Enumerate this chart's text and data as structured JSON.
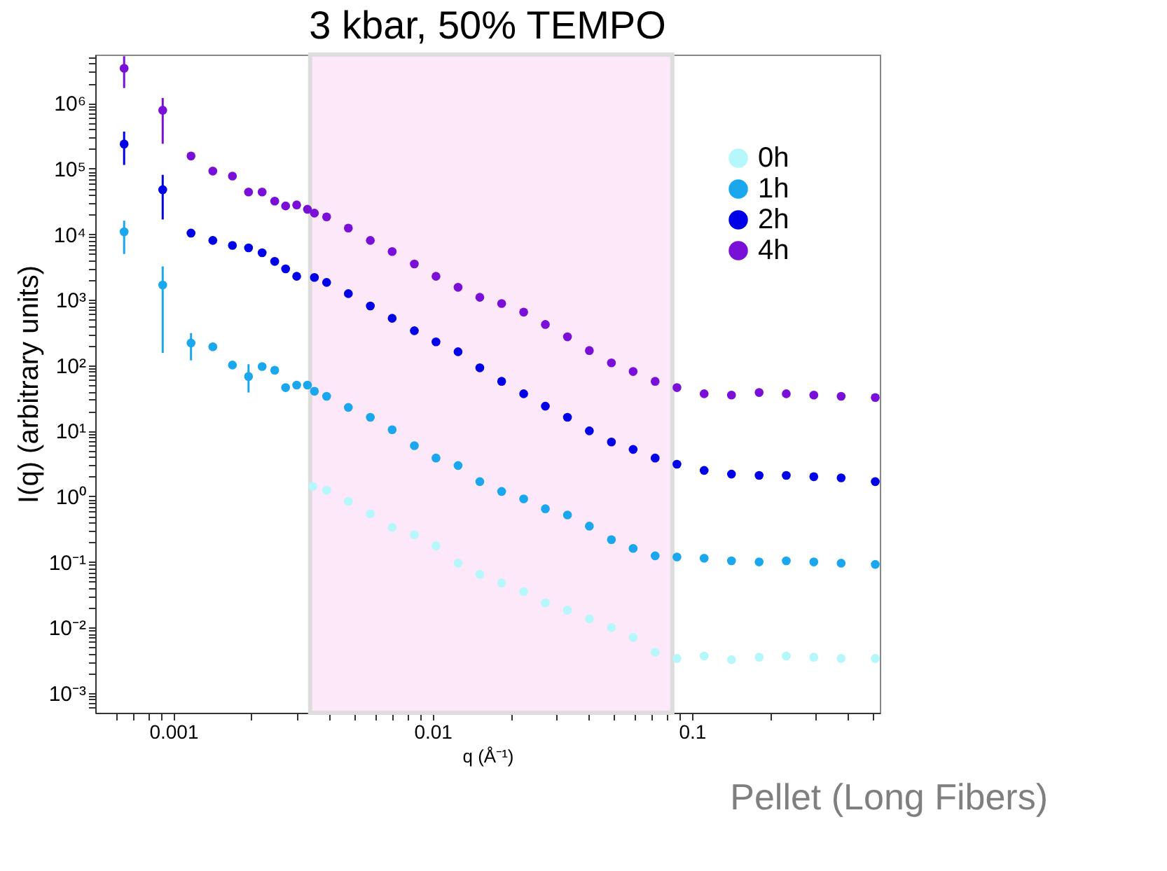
{
  "chart_data": {
    "type": "scatter",
    "title": "3 kbar, 50% TEMPO",
    "xlabel": "q (Å⁻¹)",
    "ylabel": "I(q) (arbitrary units)",
    "log": "xy",
    "grid": false,
    "legend": "top right",
    "marker": "circle",
    "xlim": [
      0.0005,
      0.53
    ],
    "ylim": [
      0.0005,
      5500000
    ],
    "xticks": [
      {
        "value": 0.0006,
        "label": null
      },
      {
        "value": 0.0007,
        "label": null
      },
      {
        "value": 0.0008,
        "label": null
      },
      {
        "value": 0.0009,
        "label": null
      },
      0.001,
      {
        "value": 0.002,
        "label": null
      },
      {
        "value": 0.003,
        "label": null
      },
      {
        "value": 0.004,
        "label": null
      },
      {
        "value": 0.005,
        "label": null
      },
      {
        "value": 0.006,
        "label": null
      },
      {
        "value": 0.007,
        "label": null
      },
      {
        "value": 0.008,
        "label": null
      },
      {
        "value": 0.009,
        "label": null
      },
      0.01,
      {
        "value": 0.02,
        "label": null
      },
      {
        "value": 0.03,
        "label": null
      },
      {
        "value": 0.04,
        "label": null
      },
      {
        "value": 0.05,
        "label": null
      },
      {
        "value": 0.06,
        "label": null
      },
      {
        "value": 0.07,
        "label": null
      },
      {
        "value": 0.08,
        "label": null
      },
      {
        "value": 0.09,
        "label": null
      },
      0.1,
      {
        "value": 0.2,
        "label": null
      },
      {
        "value": 0.3,
        "label": null
      },
      {
        "value": 0.4,
        "label": null
      },
      {
        "value": 0.5,
        "label": null
      }
    ],
    "yticks": [
      {
        "value": 0.0006,
        "label": null
      },
      {
        "value": 0.0007,
        "label": null
      },
      {
        "value": 0.0008,
        "label": null
      },
      {
        "value": 0.0009,
        "label": null
      },
      {
        "value": 0.001,
        "label": "10⁻³"
      },
      {
        "value": 0.002,
        "label": null
      },
      {
        "value": 0.003,
        "label": null
      },
      {
        "value": 0.004,
        "label": null
      },
      {
        "value": 0.005,
        "label": null
      },
      {
        "value": 0.006,
        "label": null
      },
      {
        "value": 0.007,
        "label": null
      },
      {
        "value": 0.008,
        "label": null
      },
      {
        "value": 0.009,
        "label": null
      },
      {
        "value": 0.01,
        "label": "10⁻²"
      },
      {
        "value": 0.02,
        "label": null
      },
      {
        "value": 0.03,
        "label": null
      },
      {
        "value": 0.04,
        "label": null
      },
      {
        "value": 0.05,
        "label": null
      },
      {
        "value": 0.06,
        "label": null
      },
      {
        "value": 0.07,
        "label": null
      },
      {
        "value": 0.08,
        "label": null
      },
      {
        "value": 0.09,
        "label": null
      },
      {
        "value": 0.1,
        "label": "10⁻¹"
      },
      {
        "value": 0.2,
        "label": null
      },
      {
        "value": 0.3,
        "label": null
      },
      {
        "value": 0.4,
        "label": null
      },
      {
        "value": 0.5,
        "label": null
      },
      {
        "value": 0.6,
        "label": null
      },
      {
        "value": 0.7,
        "label": null
      },
      {
        "value": 0.8,
        "label": null
      },
      {
        "value": 0.9,
        "label": null
      },
      {
        "value": 1,
        "label": "10⁰"
      },
      {
        "value": 2,
        "label": null
      },
      {
        "value": 3,
        "label": null
      },
      {
        "value": 4,
        "label": null
      },
      {
        "value": 5,
        "label": null
      },
      {
        "value": 6,
        "label": null
      },
      {
        "value": 7,
        "label": null
      },
      {
        "value": 8,
        "label": null
      },
      {
        "value": 9,
        "label": null
      },
      {
        "value": 10,
        "label": "10¹"
      },
      {
        "value": 20,
        "label": null
      },
      {
        "value": 30,
        "label": null
      },
      {
        "value": 40,
        "label": null
      },
      {
        "value": 50,
        "label": null
      },
      {
        "value": 60,
        "label": null
      },
      {
        "value": 70,
        "label": null
      },
      {
        "value": 80,
        "label": null
      },
      {
        "value": 90,
        "label": null
      },
      {
        "value": 100,
        "label": "10²"
      },
      {
        "value": 200,
        "label": null
      },
      {
        "value": 300,
        "label": null
      },
      {
        "value": 400,
        "label": null
      },
      {
        "value": 500,
        "label": null
      },
      {
        "value": 600,
        "label": null
      },
      {
        "value": 700,
        "label": null
      },
      {
        "value": 800,
        "label": null
      },
      {
        "value": 900,
        "label": null
      },
      {
        "value": 1000,
        "label": "10³"
      },
      {
        "value": 2000,
        "label": null
      },
      {
        "value": 3000,
        "label": null
      },
      {
        "value": 4000,
        "label": null
      },
      {
        "value": 5000,
        "label": null
      },
      {
        "value": 6000,
        "label": null
      },
      {
        "value": 7000,
        "label": null
      },
      {
        "value": 8000,
        "label": null
      },
      {
        "value": 9000,
        "label": null
      },
      {
        "value": 10000,
        "label": "10⁴"
      },
      {
        "value": 20000,
        "label": null
      },
      {
        "value": 30000,
        "label": null
      },
      {
        "value": 40000,
        "label": null
      },
      {
        "value": 50000,
        "label": null
      },
      {
        "value": 60000,
        "label": null
      },
      {
        "value": 70000,
        "label": null
      },
      {
        "value": 80000,
        "label": null
      },
      {
        "value": 90000,
        "label": null
      },
      {
        "value": 100000,
        "label": "10⁵"
      },
      {
        "value": 200000,
        "label": null
      },
      {
        "value": 300000,
        "label": null
      },
      {
        "value": 400000,
        "label": null
      },
      {
        "value": 500000,
        "label": null
      },
      {
        "value": 600000,
        "label": null
      },
      {
        "value": 700000,
        "label": null
      },
      {
        "value": 800000,
        "label": null
      },
      {
        "value": 900000,
        "label": null
      },
      {
        "value": 1000000,
        "label": "10⁶"
      },
      {
        "value": 2000000,
        "label": null
      },
      {
        "value": 3000000,
        "label": null
      },
      {
        "value": 4000000,
        "label": null
      },
      {
        "value": 5000000,
        "label": null
      }
    ],
    "bands": [
      {
        "axis": "x",
        "from": 0.00337,
        "to": 0.084,
        "color": "#fde8fa"
      }
    ],
    "annotations": [
      "Pellet (Long Fibers)"
    ],
    "series": [
      {
        "name": "0h",
        "color": "#b5f7fb",
        "x": [
          0.00345,
          0.0039,
          0.00473,
          0.00575,
          0.00698,
          0.0085,
          0.0103,
          0.01253,
          0.0152,
          0.01845,
          0.02244,
          0.0272,
          0.0331,
          0.0402,
          0.0489,
          0.0593,
          0.0721,
          0.0875,
          0.1114,
          0.142,
          0.1815,
          0.231,
          0.295,
          0.376,
          0.509
        ],
        "values": [
          1.42,
          1.24,
          0.841,
          0.544,
          0.337,
          0.26,
          0.176,
          0.0957,
          0.0647,
          0.0478,
          0.0352,
          0.0238,
          0.0184,
          0.0136,
          0.01,
          0.00706,
          0.0042,
          0.00337,
          0.00368,
          0.00323,
          0.00352,
          0.00368,
          0.00352,
          0.00337,
          0.00337
        ]
      },
      {
        "name": "1h",
        "color": "#1aa7ee",
        "x": [
          0.000646,
          0.00091,
          0.00117,
          0.00142,
          0.00169,
          0.00195,
          0.0022,
          0.00246,
          0.00271,
          0.00299,
          0.00329,
          0.0035,
          0.0039,
          0.00473,
          0.00575,
          0.00698,
          0.0085,
          0.0103,
          0.01253,
          0.0152,
          0.01845,
          0.02244,
          0.0272,
          0.0331,
          0.0402,
          0.0489,
          0.0593,
          0.0721,
          0.0875,
          0.1114,
          0.142,
          0.1815,
          0.231,
          0.295,
          0.376,
          0.509
        ],
        "values": [
          10900,
          1680,
          219,
          192,
          101,
          67.6,
          95.7,
          84.1,
          45.7,
          49.9,
          49.9,
          40.2,
          33.7,
          22.8,
          16.1,
          10.4,
          5.94,
          3.85,
          2.96,
          1.68,
          1.19,
          0.917,
          0.647,
          0.521,
          0.352,
          0.219,
          0.161,
          0.124,
          0.119,
          0.114,
          0.104,
          0.1,
          0.104,
          0.1,
          0.0957,
          0.0917
        ],
        "errors": [
          [
            4990,
            16100
          ],
          [
            155,
            3230
          ],
          [
            119,
            310
          ],
          null,
          null,
          [
            38.5,
            104
          ],
          null,
          null,
          null,
          null,
          null,
          null,
          null,
          null,
          null,
          null,
          null,
          null,
          null,
          null,
          null,
          null,
          null,
          null,
          null,
          null,
          null,
          null,
          null,
          null,
          null,
          null,
          null,
          null,
          null,
          null
        ]
      },
      {
        "name": "2h",
        "color": "#0000e8",
        "x": [
          0.000646,
          0.00091,
          0.00117,
          0.00142,
          0.00169,
          0.00195,
          0.0022,
          0.00246,
          0.00271,
          0.00299,
          0.0035,
          0.0039,
          0.00473,
          0.00575,
          0.00698,
          0.0085,
          0.0103,
          0.01253,
          0.0152,
          0.01845,
          0.02244,
          0.0272,
          0.0331,
          0.0402,
          0.0489,
          0.0593,
          0.0721,
          0.0875,
          0.1114,
          0.142,
          0.1815,
          0.231,
          0.295,
          0.376,
          0.509
        ],
        "values": [
          238000,
          47800,
          10400,
          8050,
          6760,
          6200,
          5210,
          3850,
          2960,
          2280,
          2190,
          1840,
          1240,
          805,
          521,
          337,
          228,
          161,
          91.6,
          56.9,
          36.8,
          23.8,
          16.1,
          10,
          6.76,
          5.21,
          3.85,
          3.1,
          2.49,
          2.19,
          2.09,
          2.09,
          2.0,
          1.92,
          1.68
        ],
        "errors": [
          [
            114000,
            368000
          ],
          [
            16800,
            80500
          ],
          null,
          null,
          null,
          null,
          null,
          null,
          null,
          null,
          null,
          null,
          null,
          null,
          null,
          null,
          null,
          null,
          null,
          null,
          null,
          null,
          null,
          null,
          null,
          null,
          null,
          null,
          null,
          null,
          null,
          null,
          null,
          null,
          null
        ]
      },
      {
        "name": "4h",
        "color": "#7a10d8",
        "x": [
          0.000646,
          0.00091,
          0.00117,
          0.00142,
          0.00169,
          0.00195,
          0.0022,
          0.00246,
          0.00271,
          0.00299,
          0.00329,
          0.0035,
          0.0039,
          0.00473,
          0.00575,
          0.00698,
          0.0085,
          0.0103,
          0.01253,
          0.0152,
          0.01845,
          0.02244,
          0.0272,
          0.0331,
          0.0402,
          0.0489,
          0.0593,
          0.0721,
          0.0875,
          0.1114,
          0.142,
          0.1815,
          0.231,
          0.295,
          0.376,
          0.509
        ],
        "values": [
          3400000,
          780000,
          156000,
          92000,
          77000,
          44000,
          44000,
          32000,
          27000,
          28000,
          24000,
          21000,
          18400,
          12400,
          8050,
          5450,
          3520,
          2280,
          1550,
          1090,
          877,
          647,
          420,
          272,
          168,
          109,
          80.5,
          56.9,
          45.7,
          36.8,
          35.2,
          38.5,
          36.8,
          35.2,
          33.7,
          32.3
        ],
        "errors": [
          [
            1700000,
            5200000
          ],
          [
            240000,
            1200000
          ],
          null,
          null,
          null,
          null,
          null,
          null,
          null,
          null,
          null,
          null,
          null,
          null,
          null,
          null,
          null,
          null,
          null,
          null,
          null,
          null,
          null,
          null,
          null,
          null,
          null,
          null,
          null,
          null,
          null,
          null,
          null,
          null,
          null,
          null
        ]
      }
    ]
  }
}
